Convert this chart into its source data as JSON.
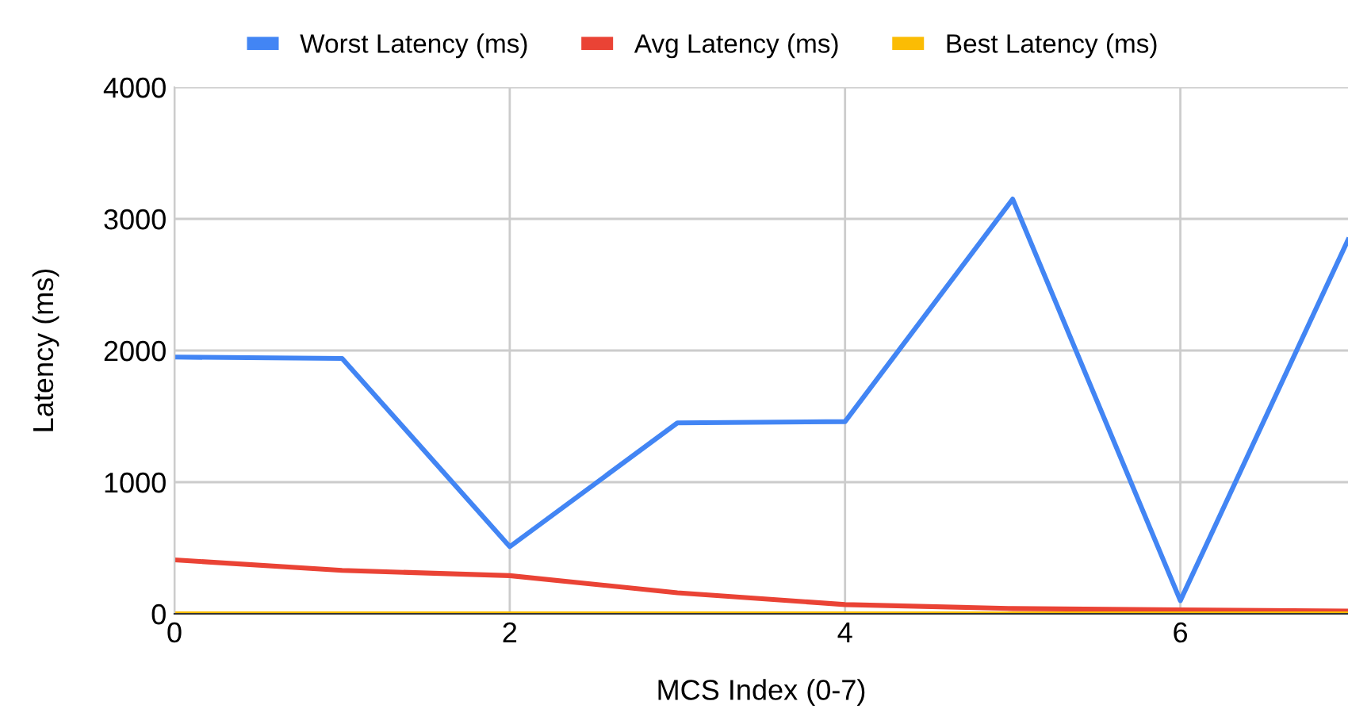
{
  "chart_data": {
    "type": "line",
    "xlabel": "MCS Index (0-7)",
    "ylabel": "Latency (ms)",
    "x": [
      0,
      1,
      2,
      3,
      4,
      5,
      6,
      7
    ],
    "series": [
      {
        "name": "Worst Latency (ms)",
        "color": "#4285f4",
        "values": [
          1950,
          1940,
          510,
          1450,
          1460,
          3150,
          100,
          2840
        ]
      },
      {
        "name": "Avg Latency (ms)",
        "color": "#ea4335",
        "values": [
          410,
          330,
          290,
          160,
          70,
          40,
          30,
          20
        ]
      },
      {
        "name": "Best Latency (ms)",
        "color": "#fbbc04",
        "values": [
          0,
          0,
          0,
          0,
          0,
          0,
          0,
          0
        ]
      }
    ],
    "xlim": [
      0,
      7
    ],
    "xticks": [
      0,
      2,
      4,
      6
    ],
    "ylim": [
      0,
      4000
    ],
    "yticks": [
      0,
      1000,
      2000,
      3000,
      4000
    ],
    "grid": true,
    "legend": "top",
    "marker": "none",
    "line_style": "solid"
  }
}
